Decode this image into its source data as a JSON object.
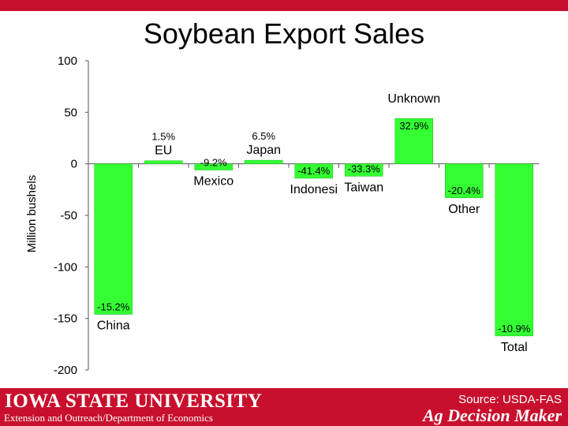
{
  "header": {
    "title": "Soybean Export Sales"
  },
  "colors": {
    "bar": "#33ff33",
    "bar_edge": "#1ab81a",
    "accent": "#c8102e"
  },
  "chart_data": {
    "type": "bar",
    "title": "Soybean Export Sales",
    "xlabel": "",
    "ylabel": "Million bushels",
    "ylim": [
      -200,
      100
    ],
    "yticks": [
      100,
      50,
      0,
      -50,
      -100,
      -150,
      -200
    ],
    "grid": false,
    "categories": [
      "China",
      "EU",
      "Mexico",
      "Japan",
      "Indonesia",
      "Taiwan",
      "Unknown",
      "Other",
      "Total"
    ],
    "category_labels": [
      "China",
      "EU",
      "Mexico",
      "Japan",
      "Indonesi",
      "Taiwan",
      "Unknown",
      "Other",
      "Total"
    ],
    "values": [
      -146,
      3,
      -6,
      3.5,
      -14,
      -12,
      44,
      -33,
      -167
    ],
    "percent_labels": [
      "-15.2%",
      "1.5%",
      "-9.2%",
      "6.5%",
      "-41.4%",
      "-33.3%",
      "32.9%",
      "-20.4%",
      "-10.9%"
    ]
  },
  "footer": {
    "university": "IOWA STATE UNIVERSITY",
    "department": "Extension and Outreach/Department of Economics",
    "source": "Source: USDA-FAS",
    "brand": "Ag Decision Maker"
  }
}
